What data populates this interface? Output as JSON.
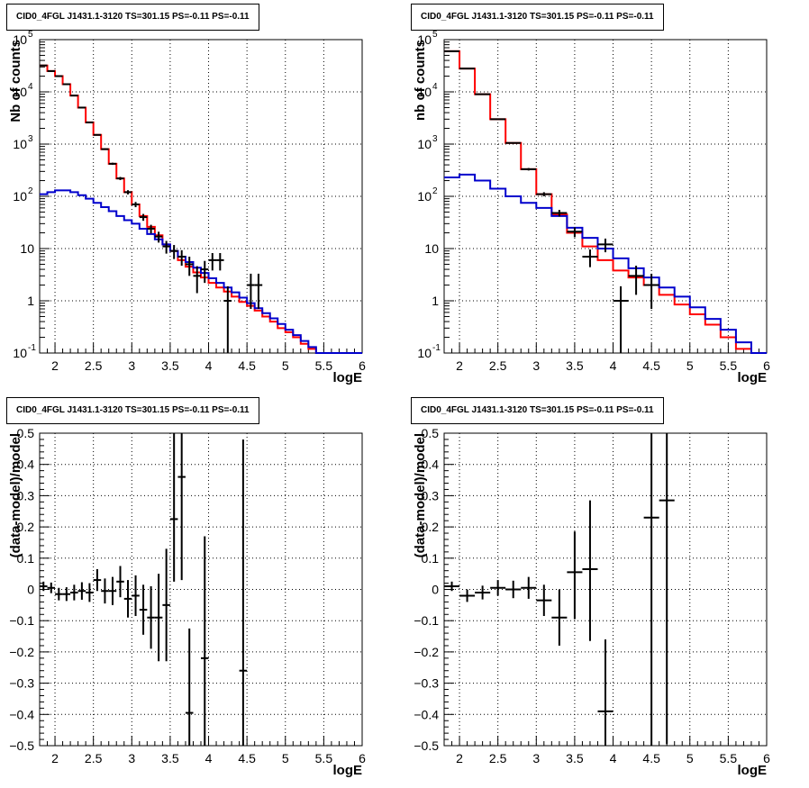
{
  "chart_data": [
    {
      "type": "step",
      "title": "CID0_4FGL J1431.1-3120 TS=301.15 PS=-0.11 PS=-0.11",
      "xlabel": "logE",
      "ylabel": "Nb of counts",
      "xlim": [
        1.8,
        6.0
      ],
      "ylim": [
        0.1,
        100000
      ],
      "yscale": "log",
      "grid": true,
      "xticks": [
        "2",
        "2.5",
        "3",
        "3.5",
        "4",
        "4.5",
        "5",
        "5.5",
        "6"
      ],
      "yticks": [
        "10^-1",
        "1",
        "10",
        "10^2",
        "10^3",
        "10^4",
        "10^5"
      ],
      "series": [
        {
          "color": "#ff0000",
          "kind": "step",
          "bin_edges": [
            1.8,
            1.9,
            2.0,
            2.1,
            2.2,
            2.3,
            2.4,
            2.5,
            2.6,
            2.7,
            2.8,
            2.9,
            3.0,
            3.1,
            3.2,
            3.3,
            3.4,
            3.5,
            3.6,
            3.7,
            3.8,
            3.9,
            4.0,
            4.1,
            4.2,
            4.3,
            4.4,
            4.5,
            4.6,
            4.7,
            4.8,
            4.9,
            5.0,
            5.1,
            5.2,
            5.3,
            5.4,
            5.5,
            5.6,
            5.7,
            5.8,
            5.9,
            6.0
          ],
          "values": [
            32000,
            25000,
            20000,
            14000,
            8500,
            5000,
            2600,
            1500,
            800,
            420,
            220,
            120,
            70,
            42,
            26,
            18,
            12,
            9,
            6,
            4.5,
            3.5,
            2.8,
            2.2,
            1.8,
            1.5,
            1.2,
            0.95,
            0.8,
            0.65,
            0.5,
            0.4,
            0.3,
            0.25,
            0.2,
            0.15,
            0.12,
            0.1,
            0.1,
            0.1,
            0.1,
            0.1,
            0.1
          ]
        },
        {
          "color": "#0000cc",
          "kind": "step",
          "bin_edges": [
            1.8,
            1.9,
            2.0,
            2.1,
            2.2,
            2.3,
            2.4,
            2.5,
            2.6,
            2.7,
            2.8,
            2.9,
            3.0,
            3.1,
            3.2,
            3.3,
            3.4,
            3.5,
            3.6,
            3.7,
            3.8,
            3.9,
            4.0,
            4.1,
            4.2,
            4.3,
            4.4,
            4.5,
            4.6,
            4.7,
            4.8,
            4.9,
            5.0,
            5.1,
            5.2,
            5.3,
            5.4,
            5.5,
            5.6,
            5.7,
            5.8,
            5.9,
            6.0
          ],
          "values": [
            110,
            120,
            130,
            130,
            120,
            105,
            90,
            75,
            62,
            52,
            42,
            35,
            30,
            24,
            19,
            15,
            12,
            9,
            7,
            5.5,
            4.3,
            3.4,
            2.7,
            2.2,
            1.8,
            1.45,
            1.15,
            0.9,
            0.72,
            0.58,
            0.46,
            0.36,
            0.28,
            0.22,
            0.17,
            0.13,
            0.1,
            0.1,
            0.1,
            0.1,
            0.1,
            0.1
          ]
        },
        {
          "color": "#000000",
          "kind": "points",
          "x": [
            1.85,
            1.95,
            2.05,
            2.15,
            2.25,
            2.35,
            2.45,
            2.55,
            2.65,
            2.75,
            2.85,
            2.95,
            3.05,
            3.15,
            3.25,
            3.35,
            3.45,
            3.55,
            3.65,
            3.75,
            3.85,
            3.95,
            4.05,
            4.15,
            4.25,
            4.35,
            4.45,
            4.55,
            4.65
          ],
          "y": [
            32000,
            25000,
            20000,
            14000,
            8500,
            5000,
            2600,
            1500,
            800,
            420,
            220,
            120,
            70,
            40,
            24,
            17,
            11,
            9,
            7,
            5,
            3,
            4,
            6,
            6,
            1,
            0,
            0,
            2,
            2
          ],
          "yerr_low": [
            200,
            160,
            140,
            120,
            90,
            70,
            50,
            40,
            28,
            20,
            15,
            11,
            8,
            6,
            4.5,
            4,
            3,
            2.7,
            2.3,
            2,
            1.6,
            1.8,
            2.2,
            2.2,
            0.9,
            0,
            0,
            1.3,
            1.3
          ],
          "yerr_high": [
            200,
            160,
            140,
            120,
            90,
            70,
            50,
            40,
            28,
            20,
            15,
            11,
            8,
            6,
            4.5,
            4,
            3,
            2.7,
            2.3,
            2,
            1.6,
            1.8,
            2.2,
            2.2,
            0.9,
            0,
            0,
            1.3,
            1.3
          ],
          "xerr": 0.05
        }
      ]
    },
    {
      "type": "step",
      "title": "CID0_4FGL J1431.1-3120 TS=301.15 PS=-0.11 PS=-0.11",
      "xlabel": "logE",
      "ylabel": "nb of counts",
      "xlim": [
        1.8,
        6.0
      ],
      "ylim": [
        0.1,
        100000
      ],
      "yscale": "log",
      "grid": true,
      "xticks": [
        "2",
        "2.5",
        "3",
        "3.5",
        "4",
        "4.5",
        "5",
        "5.5",
        "6"
      ],
      "yticks": [
        "10^-1",
        "1",
        "10",
        "10^2",
        "10^3",
        "10^4",
        "10^5"
      ],
      "series": [
        {
          "color": "#ff0000",
          "kind": "step",
          "bin_edges": [
            1.8,
            2.0,
            2.2,
            2.4,
            2.6,
            2.8,
            3.0,
            3.2,
            3.4,
            3.6,
            3.8,
            4.0,
            4.2,
            4.4,
            4.6,
            4.8,
            5.0,
            5.2,
            5.4,
            5.6,
            5.8,
            6.0
          ],
          "values": [
            60000,
            28000,
            9000,
            3000,
            1050,
            330,
            110,
            45,
            20,
            11,
            6,
            3.8,
            2.8,
            2,
            1.3,
            0.85,
            0.55,
            0.35,
            0.2,
            0.12,
            0.1
          ],
          "last_value_note": ""
        },
        {
          "color": "#0000cc",
          "kind": "step",
          "bin_edges": [
            1.8,
            2.0,
            2.2,
            2.4,
            2.6,
            2.8,
            3.0,
            3.2,
            3.4,
            3.6,
            3.8,
            4.0,
            4.2,
            4.4,
            4.6,
            4.8,
            5.0,
            5.2,
            5.4,
            5.6,
            5.8,
            6.0
          ],
          "values": [
            230,
            260,
            200,
            140,
            100,
            75,
            60,
            42,
            25,
            16,
            10,
            6.5,
            4.2,
            2.8,
            1.8,
            1.2,
            0.75,
            0.45,
            0.28,
            0.16,
            0.1
          ]
        },
        {
          "color": "#000000",
          "kind": "points",
          "x": [
            1.9,
            2.1,
            2.3,
            2.5,
            2.7,
            2.9,
            3.1,
            3.3,
            3.5,
            3.7,
            3.9,
            4.1,
            4.3,
            4.5,
            4.7
          ],
          "y": [
            60000,
            28000,
            9000,
            3000,
            1050,
            330,
            110,
            48,
            21,
            7,
            12,
            1,
            3,
            2,
            0
          ],
          "yerr_low": [
            250,
            170,
            95,
            55,
            32,
            18,
            10,
            7,
            4.5,
            2.6,
            3.5,
            0.9,
            1.7,
            1.3,
            0
          ],
          "yerr_high": [
            250,
            170,
            95,
            55,
            32,
            18,
            10,
            7,
            4.5,
            2.6,
            3.5,
            0.9,
            1.7,
            1.3,
            0
          ],
          "xerr": 0.1
        }
      ]
    },
    {
      "type": "scatter",
      "title": "CID0_4FGL J1431.1-3120 TS=301.15 PS=-0.11 PS=-0.11",
      "xlabel": "logE",
      "ylabel": "(data-model)/model",
      "xlim": [
        1.8,
        6.0
      ],
      "ylim": [
        -0.5,
        0.5
      ],
      "yscale": "linear",
      "grid": true,
      "xticks": [
        "2",
        "2.5",
        "3",
        "3.5",
        "4",
        "4.5",
        "5",
        "5.5",
        "6"
      ],
      "yticks": [
        "−0.5",
        "−0.4",
        "−0.3",
        "−0.2",
        "−0.1",
        "0",
        "0.1",
        "0.2",
        "0.3",
        "0.4",
        "0.5"
      ],
      "series": [
        {
          "color": "#000000",
          "kind": "points",
          "x": [
            1.85,
            1.95,
            2.05,
            2.15,
            2.25,
            2.35,
            2.45,
            2.55,
            2.65,
            2.75,
            2.85,
            2.95,
            3.05,
            3.15,
            3.25,
            3.35,
            3.45,
            3.55,
            3.65,
            3.75,
            3.95,
            4.45
          ],
          "y": [
            0.01,
            0.005,
            -0.015,
            -0.015,
            -0.01,
            -0.005,
            -0.01,
            0.03,
            -0.005,
            -0.005,
            0.025,
            -0.03,
            -0.02,
            -0.065,
            -0.09,
            -0.09,
            -0.05,
            0.225,
            0.36,
            -0.395,
            -0.22,
            -0.26
          ],
          "yerr_low": [
            0.015,
            0.017,
            0.02,
            0.022,
            0.025,
            0.028,
            0.03,
            0.035,
            0.04,
            0.045,
            0.05,
            0.06,
            0.065,
            0.08,
            0.1,
            0.14,
            0.18,
            0.2,
            0.33,
            0.25,
            0.4,
            0.24
          ],
          "yerr_high": [
            0.015,
            0.017,
            0.02,
            0.022,
            0.025,
            0.028,
            0.03,
            0.035,
            0.04,
            0.045,
            0.05,
            0.06,
            0.065,
            0.08,
            0.1,
            0.14,
            0.18,
            0.28,
            0.14,
            0.27,
            0.39,
            0.74
          ],
          "xerr": 0.05
        }
      ]
    },
    {
      "type": "scatter",
      "title": "CID0_4FGL J1431.1-3120 TS=301.15 PS=-0.11 PS=-0.11",
      "xlabel": "logE",
      "ylabel": "(data-model)/model",
      "xlim": [
        1.8,
        6.0
      ],
      "ylim": [
        -0.5,
        0.5
      ],
      "yscale": "linear",
      "grid": true,
      "xticks": [
        "2",
        "2.5",
        "3",
        "3.5",
        "4",
        "4.5",
        "5",
        "5.5",
        "6"
      ],
      "yticks": [
        "−0.5",
        "−0.4",
        "−0.3",
        "−0.2",
        "−0.1",
        "0",
        "0.1",
        "0.2",
        "0.3",
        "0.4",
        "0.5"
      ],
      "series": [
        {
          "color": "#000000",
          "kind": "points",
          "x": [
            1.9,
            2.1,
            2.3,
            2.5,
            2.7,
            2.9,
            3.1,
            3.3,
            3.5,
            3.7,
            3.9,
            4.5,
            4.7
          ],
          "y": [
            0.01,
            -0.02,
            -0.01,
            0.005,
            0.0,
            0.005,
            -0.035,
            -0.09,
            0.055,
            0.065,
            -0.39,
            0.23,
            0.285
          ],
          "yerr_low": [
            0.015,
            0.02,
            0.022,
            0.025,
            0.028,
            0.035,
            0.05,
            0.09,
            0.15,
            0.23,
            0.11,
            0.73,
            0.78
          ],
          "yerr_high": [
            0.015,
            0.02,
            0.022,
            0.025,
            0.028,
            0.035,
            0.05,
            0.09,
            0.13,
            0.22,
            0.23,
            0.27,
            0.22
          ],
          "xerr": 0.1
        }
      ]
    }
  ]
}
